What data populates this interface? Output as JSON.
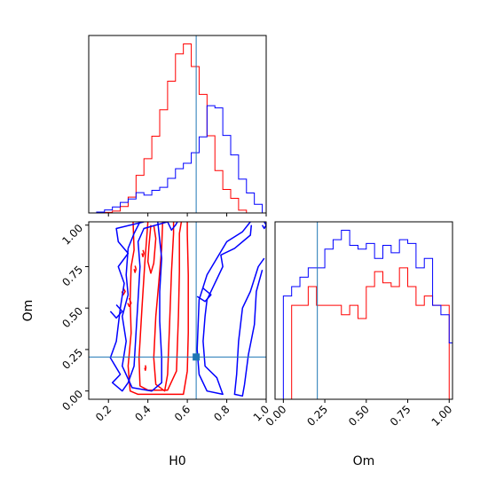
{
  "chart_data": {
    "type": "corner",
    "parameters": [
      "H0",
      "Om"
    ],
    "axis_labels": {
      "x_bottom_left": "H0",
      "x_bottom_right": "Om",
      "y_left": "Om"
    },
    "truth": {
      "H0": 0.645,
      "Om": 0.205
    },
    "colors": {
      "red": "#ff0000",
      "blue": "#0000ff",
      "truth": "#1f77b4"
    },
    "h0_axis": {
      "ylim": [
        0.1,
        1.0
      ],
      "ticks": [
        "0.2",
        "0.4",
        "0.6",
        "0.8",
        "1.0"
      ]
    },
    "om_axis": {
      "ylim": [
        -0.05,
        1.02
      ],
      "ticks": [
        "0.00",
        "0.25",
        "0.50",
        "0.75",
        "1.00"
      ]
    },
    "h0_hist": {
      "bin_edges": [
        0.14,
        0.18,
        0.22,
        0.26,
        0.3,
        0.34,
        0.38,
        0.42,
        0.46,
        0.5,
        0.54,
        0.58,
        0.62,
        0.66,
        0.7,
        0.74,
        0.78,
        0.82,
        0.86,
        0.9,
        0.94,
        0.98
      ],
      "series": [
        {
          "color": "red",
          "counts": [
            0,
            0.3,
            1.0,
            3.4,
            8.4,
            20.0,
            28.8,
            40.8,
            54.8,
            70.0,
            84.5,
            89.8,
            77.8,
            63.0,
            41.0,
            22.5,
            12.5,
            7.8,
            1.5,
            0,
            0
          ]
        },
        {
          "color": "blue",
          "counts": [
            0.5,
            1.6,
            3.2,
            5.6,
            7.4,
            10.8,
            9.5,
            12.0,
            13.6,
            18.4,
            23.5,
            26.4,
            32.0,
            40.4,
            57.0,
            55.8,
            41.2,
            30.8,
            18.0,
            10.6,
            4.6
          ]
        }
      ]
    },
    "om_hist": {
      "bin_edges": [
        -0.05,
        0.0,
        0.05,
        0.1,
        0.15,
        0.2,
        0.25,
        0.3,
        0.35,
        0.4,
        0.45,
        0.5,
        0.55,
        0.6,
        0.65,
        0.7,
        0.75,
        0.8,
        0.85,
        0.9,
        0.95,
        1.0,
        1.02
      ],
      "series": [
        {
          "color": "red",
          "counts": [
            0,
            0,
            0.5,
            0.5,
            0.6,
            0.5,
            0.5,
            0.5,
            0.45,
            0.5,
            0.43,
            0.6,
            0.68,
            0.62,
            0.6,
            0.7,
            0.6,
            0.5,
            0.55,
            0.5,
            0.5,
            0
          ]
        },
        {
          "color": "blue",
          "counts": [
            0,
            0.55,
            0.6,
            0.65,
            0.7,
            0.7,
            0.8,
            0.85,
            0.9,
            0.82,
            0.8,
            0.83,
            0.75,
            0.82,
            0.78,
            0.85,
            0.83,
            0.7,
            0.75,
            0.5,
            0.45,
            0.3
          ]
        }
      ]
    },
    "contours": [
      {
        "color": "red",
        "points": [
          [
            0.475,
            1.02
          ],
          [
            0.47,
            0.86
          ],
          [
            0.455,
            0.65
          ],
          [
            0.44,
            0.45
          ],
          [
            0.43,
            0.2
          ],
          [
            0.44,
            0.04
          ],
          [
            0.485,
            0.0
          ],
          [
            0.5,
            0.1
          ],
          [
            0.51,
            0.4
          ],
          [
            0.52,
            0.72
          ],
          [
            0.53,
            0.95
          ],
          [
            0.53,
            1.02
          ]
        ]
      },
      {
        "color": "red",
        "points": [
          [
            0.4,
            1.02
          ],
          [
            0.385,
            0.78
          ],
          [
            0.37,
            0.5
          ],
          [
            0.355,
            0.2
          ],
          [
            0.36,
            0.03
          ],
          [
            0.4,
            0.005
          ],
          [
            0.5,
            0.005
          ],
          [
            0.545,
            0.12
          ],
          [
            0.555,
            0.45
          ],
          [
            0.56,
            0.72
          ],
          [
            0.56,
            0.95
          ],
          [
            0.57,
            1.02
          ]
        ]
      },
      {
        "color": "red",
        "points": [
          [
            0.415,
            1.0
          ],
          [
            0.405,
            0.87
          ],
          [
            0.4,
            0.78
          ],
          [
            0.415,
            0.71
          ],
          [
            0.43,
            0.77
          ],
          [
            0.44,
            0.92
          ],
          [
            0.43,
            1.0
          ]
        ]
      },
      {
        "color": "red",
        "points": [
          [
            0.275,
            0.62
          ],
          [
            0.285,
            0.6
          ],
          [
            0.275,
            0.58
          ],
          [
            0.268,
            0.6
          ]
        ]
      },
      {
        "color": "red",
        "points": [
          [
            0.305,
            0.56
          ],
          [
            0.315,
            0.53
          ],
          [
            0.305,
            0.51
          ],
          [
            0.298,
            0.53
          ]
        ]
      },
      {
        "color": "red",
        "points": [
          [
            0.375,
            0.85
          ],
          [
            0.38,
            0.83
          ],
          [
            0.375,
            0.81
          ],
          [
            0.37,
            0.83
          ]
        ]
      },
      {
        "color": "red",
        "points": [
          [
            0.335,
            0.755
          ],
          [
            0.34,
            0.735
          ],
          [
            0.335,
            0.715
          ],
          [
            0.33,
            0.735
          ]
        ]
      },
      {
        "color": "red",
        "points": [
          [
            0.387,
            0.155
          ],
          [
            0.39,
            0.14
          ],
          [
            0.387,
            0.125
          ],
          [
            0.384,
            0.14
          ]
        ]
      },
      {
        "color": "red",
        "points": [
          [
            0.325,
            1.02
          ],
          [
            0.33,
            0.85
          ],
          [
            0.315,
            0.75
          ],
          [
            0.31,
            0.55
          ],
          [
            0.315,
            0.35
          ],
          [
            0.3,
            0.15
          ],
          [
            0.31,
            0.0
          ],
          [
            0.35,
            -0.02
          ],
          [
            0.58,
            -0.02
          ],
          [
            0.6,
            0.12
          ],
          [
            0.605,
            0.35
          ],
          [
            0.605,
            0.7
          ],
          [
            0.6,
            0.95
          ],
          [
            0.6,
            1.02
          ]
        ]
      },
      {
        "color": "blue",
        "points": [
          [
            0.98,
            0.73
          ],
          [
            0.95,
            0.6
          ],
          [
            0.94,
            0.4
          ],
          [
            0.91,
            0.22
          ],
          [
            0.89,
            0.04
          ],
          [
            0.88,
            -0.03
          ],
          [
            0.84,
            -0.02
          ],
          [
            0.85,
            0.1
          ],
          [
            0.86,
            0.3
          ],
          [
            0.88,
            0.5
          ],
          [
            0.92,
            0.6
          ],
          [
            0.96,
            0.75
          ],
          [
            0.99,
            0.8
          ]
        ]
      },
      {
        "color": "blue",
        "points": [
          [
            0.925,
            1.0
          ],
          [
            0.92,
            0.94
          ],
          [
            0.84,
            0.86
          ],
          [
            0.77,
            0.82
          ],
          [
            0.78,
            0.75
          ],
          [
            0.74,
            0.65
          ],
          [
            0.7,
            0.55
          ],
          [
            0.69,
            0.45
          ],
          [
            0.68,
            0.3
          ],
          [
            0.69,
            0.15
          ],
          [
            0.75,
            0.08
          ],
          [
            0.78,
            -0.02
          ],
          [
            0.7,
            0.0
          ],
          [
            0.66,
            0.1
          ],
          [
            0.65,
            0.25
          ],
          [
            0.655,
            0.4
          ],
          [
            0.66,
            0.55
          ],
          [
            0.7,
            0.7
          ],
          [
            0.75,
            0.8
          ],
          [
            0.8,
            0.9
          ],
          [
            0.88,
            0.96
          ],
          [
            0.92,
            1.02
          ]
        ]
      },
      {
        "color": "blue",
        "points": [
          [
            0.68,
            0.62
          ],
          [
            0.72,
            0.58
          ],
          [
            0.69,
            0.54
          ],
          [
            0.65,
            0.57
          ]
        ]
      },
      {
        "color": "blue",
        "points": [
          [
            0.99,
            1.02
          ],
          [
            1.0,
            1.0
          ],
          [
            0.99,
            0.98
          ],
          [
            0.98,
            1.0
          ]
        ]
      },
      {
        "color": "blue",
        "points": [
          [
            0.24,
            0.52
          ],
          [
            0.27,
            0.48
          ],
          [
            0.24,
            0.44
          ],
          [
            0.21,
            0.48
          ]
        ]
      },
      {
        "color": "blue",
        "points": [
          [
            0.36,
            1.02
          ],
          [
            0.33,
            0.95
          ],
          [
            0.3,
            0.86
          ],
          [
            0.29,
            0.7
          ],
          [
            0.3,
            0.58
          ],
          [
            0.27,
            0.45
          ],
          [
            0.29,
            0.3
          ],
          [
            0.27,
            0.15
          ],
          [
            0.32,
            0.02
          ],
          [
            0.42,
            0.0
          ],
          [
            0.47,
            0.05
          ],
          [
            0.47,
            0.2
          ],
          [
            0.46,
            0.42
          ],
          [
            0.46,
            0.6
          ],
          [
            0.47,
            0.8
          ],
          [
            0.45,
            1.02
          ]
        ]
      },
      {
        "color": "blue",
        "points": [
          [
            0.38,
            1.02
          ],
          [
            0.24,
            0.98
          ],
          [
            0.25,
            0.9
          ],
          [
            0.3,
            0.83
          ],
          [
            0.25,
            0.75
          ],
          [
            0.28,
            0.65
          ],
          [
            0.26,
            0.5
          ],
          [
            0.24,
            0.3
          ],
          [
            0.21,
            0.2
          ],
          [
            0.26,
            0.1
          ],
          [
            0.22,
            0.05
          ],
          [
            0.27,
            0.0
          ],
          [
            0.3,
            0.05
          ],
          [
            0.33,
            0.15
          ],
          [
            0.34,
            0.35
          ],
          [
            0.35,
            0.55
          ],
          [
            0.36,
            0.75
          ],
          [
            0.35,
            0.9
          ],
          [
            0.38,
            0.98
          ],
          [
            0.5,
            1.02
          ]
        ]
      },
      {
        "color": "blue",
        "points": [
          [
            0.5,
            1.02
          ],
          [
            0.52,
            0.97
          ],
          [
            0.54,
            1.0
          ],
          [
            0.55,
            1.02
          ]
        ]
      }
    ]
  }
}
